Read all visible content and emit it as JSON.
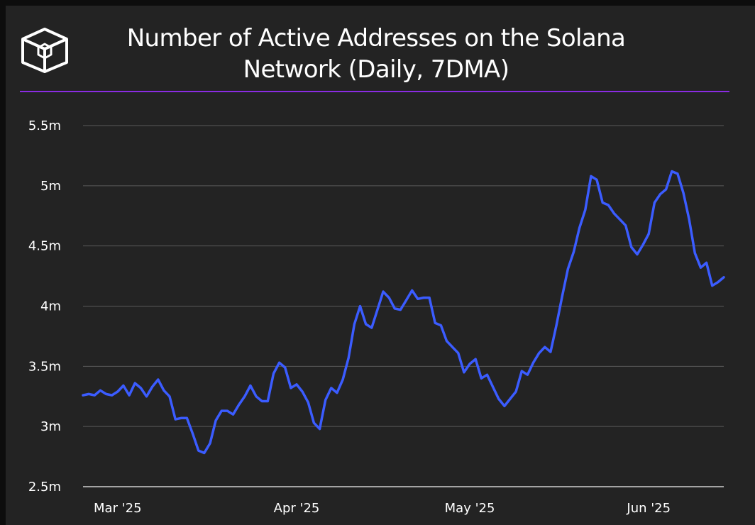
{
  "brand": {
    "logo_icon": "cube-logo-icon"
  },
  "colors": {
    "accent": "#8a2be2",
    "line": "#3b5cff",
    "background": "#232323",
    "grid": "#5a5a5a",
    "text": "#ffffff"
  },
  "chart_data": {
    "type": "line",
    "title": "Number of Active Addresses on the Solana Network (Daily, 7DMA)",
    "xlabel": "",
    "ylabel": "",
    "ylim": [
      2.5,
      5.5
    ],
    "grid": true,
    "y_ticks": [
      {
        "value": 2.5,
        "label": "2.5m"
      },
      {
        "value": 3.0,
        "label": "3m"
      },
      {
        "value": 3.5,
        "label": "3.5m"
      },
      {
        "value": 4.0,
        "label": "4m"
      },
      {
        "value": 4.5,
        "label": "4.5m"
      },
      {
        "value": 5.0,
        "label": "5m"
      },
      {
        "value": 5.5,
        "label": "5.5m"
      }
    ],
    "x_ticks": [
      {
        "date": "2025-03-01",
        "label": "Mar '25"
      },
      {
        "date": "2025-04-01",
        "label": "Apr '25"
      },
      {
        "date": "2025-05-01",
        "label": "May '25"
      },
      {
        "date": "2025-06-01",
        "label": "Jun '25"
      }
    ],
    "xlim": [
      "2025-02-23",
      "2025-06-14"
    ],
    "series": [
      {
        "unit": "million",
        "points": [
          [
            "2025-02-23",
            3.26
          ],
          [
            "2025-02-24",
            3.27
          ],
          [
            "2025-02-25",
            3.26
          ],
          [
            "2025-02-26",
            3.3
          ],
          [
            "2025-02-27",
            3.27
          ],
          [
            "2025-02-28",
            3.26
          ],
          [
            "2025-03-01",
            3.29
          ],
          [
            "2025-03-02",
            3.34
          ],
          [
            "2025-03-03",
            3.26
          ],
          [
            "2025-03-04",
            3.36
          ],
          [
            "2025-03-05",
            3.32
          ],
          [
            "2025-03-06",
            3.25
          ],
          [
            "2025-03-07",
            3.33
          ],
          [
            "2025-03-08",
            3.39
          ],
          [
            "2025-03-09",
            3.3
          ],
          [
            "2025-03-10",
            3.25
          ],
          [
            "2025-03-11",
            3.06
          ],
          [
            "2025-03-12",
            3.07
          ],
          [
            "2025-03-13",
            3.07
          ],
          [
            "2025-03-14",
            2.94
          ],
          [
            "2025-03-15",
            2.8
          ],
          [
            "2025-03-16",
            2.78
          ],
          [
            "2025-03-17",
            2.86
          ],
          [
            "2025-03-18",
            3.05
          ],
          [
            "2025-03-19",
            3.13
          ],
          [
            "2025-03-20",
            3.13
          ],
          [
            "2025-03-21",
            3.1
          ],
          [
            "2025-03-22",
            3.18
          ],
          [
            "2025-03-23",
            3.25
          ],
          [
            "2025-03-24",
            3.34
          ],
          [
            "2025-03-25",
            3.25
          ],
          [
            "2025-03-26",
            3.21
          ],
          [
            "2025-03-27",
            3.21
          ],
          [
            "2025-03-28",
            3.44
          ],
          [
            "2025-03-29",
            3.53
          ],
          [
            "2025-03-30",
            3.49
          ],
          [
            "2025-03-31",
            3.32
          ],
          [
            "2025-04-01",
            3.35
          ],
          [
            "2025-04-02",
            3.29
          ],
          [
            "2025-04-03",
            3.2
          ],
          [
            "2025-04-04",
            3.03
          ],
          [
            "2025-04-05",
            2.98
          ],
          [
            "2025-04-06",
            3.22
          ],
          [
            "2025-04-07",
            3.32
          ],
          [
            "2025-04-08",
            3.28
          ],
          [
            "2025-04-09",
            3.39
          ],
          [
            "2025-04-10",
            3.57
          ],
          [
            "2025-04-11",
            3.85
          ],
          [
            "2025-04-12",
            4.0
          ],
          [
            "2025-04-13",
            3.85
          ],
          [
            "2025-04-14",
            3.82
          ],
          [
            "2025-04-15",
            3.97
          ],
          [
            "2025-04-16",
            4.12
          ],
          [
            "2025-04-17",
            4.07
          ],
          [
            "2025-04-18",
            3.98
          ],
          [
            "2025-04-19",
            3.97
          ],
          [
            "2025-04-20",
            4.05
          ],
          [
            "2025-04-21",
            4.13
          ],
          [
            "2025-04-22",
            4.06
          ],
          [
            "2025-04-23",
            4.07
          ],
          [
            "2025-04-24",
            4.07
          ],
          [
            "2025-04-25",
            3.86
          ],
          [
            "2025-04-26",
            3.84
          ],
          [
            "2025-04-27",
            3.71
          ],
          [
            "2025-04-28",
            3.66
          ],
          [
            "2025-04-29",
            3.61
          ],
          [
            "2025-04-30",
            3.45
          ],
          [
            "2025-05-01",
            3.52
          ],
          [
            "2025-05-02",
            3.56
          ],
          [
            "2025-05-03",
            3.4
          ],
          [
            "2025-05-04",
            3.43
          ],
          [
            "2025-05-05",
            3.33
          ],
          [
            "2025-05-06",
            3.23
          ],
          [
            "2025-05-07",
            3.17
          ],
          [
            "2025-05-08",
            3.23
          ],
          [
            "2025-05-09",
            3.29
          ],
          [
            "2025-05-10",
            3.46
          ],
          [
            "2025-05-11",
            3.43
          ],
          [
            "2025-05-12",
            3.53
          ],
          [
            "2025-05-13",
            3.61
          ],
          [
            "2025-05-14",
            3.66
          ],
          [
            "2025-05-15",
            3.62
          ],
          [
            "2025-05-16",
            3.84
          ],
          [
            "2025-05-17",
            4.08
          ],
          [
            "2025-05-18",
            4.31
          ],
          [
            "2025-05-19",
            4.45
          ],
          [
            "2025-05-20",
            4.65
          ],
          [
            "2025-05-21",
            4.8
          ],
          [
            "2025-05-22",
            5.08
          ],
          [
            "2025-05-23",
            5.05
          ],
          [
            "2025-05-24",
            4.86
          ],
          [
            "2025-05-25",
            4.84
          ],
          [
            "2025-05-26",
            4.77
          ],
          [
            "2025-05-27",
            4.72
          ],
          [
            "2025-05-28",
            4.67
          ],
          [
            "2025-05-29",
            4.49
          ],
          [
            "2025-05-30",
            4.43
          ],
          [
            "2025-05-31",
            4.51
          ],
          [
            "2025-06-01",
            4.6
          ],
          [
            "2025-06-02",
            4.86
          ],
          [
            "2025-06-03",
            4.93
          ],
          [
            "2025-06-04",
            4.97
          ],
          [
            "2025-06-05",
            5.12
          ],
          [
            "2025-06-06",
            5.1
          ],
          [
            "2025-06-07",
            4.94
          ],
          [
            "2025-06-08",
            4.72
          ],
          [
            "2025-06-09",
            4.44
          ],
          [
            "2025-06-10",
            4.32
          ],
          [
            "2025-06-11",
            4.36
          ],
          [
            "2025-06-12",
            4.17
          ],
          [
            "2025-06-13",
            4.2
          ],
          [
            "2025-06-14",
            4.24
          ]
        ]
      }
    ]
  }
}
